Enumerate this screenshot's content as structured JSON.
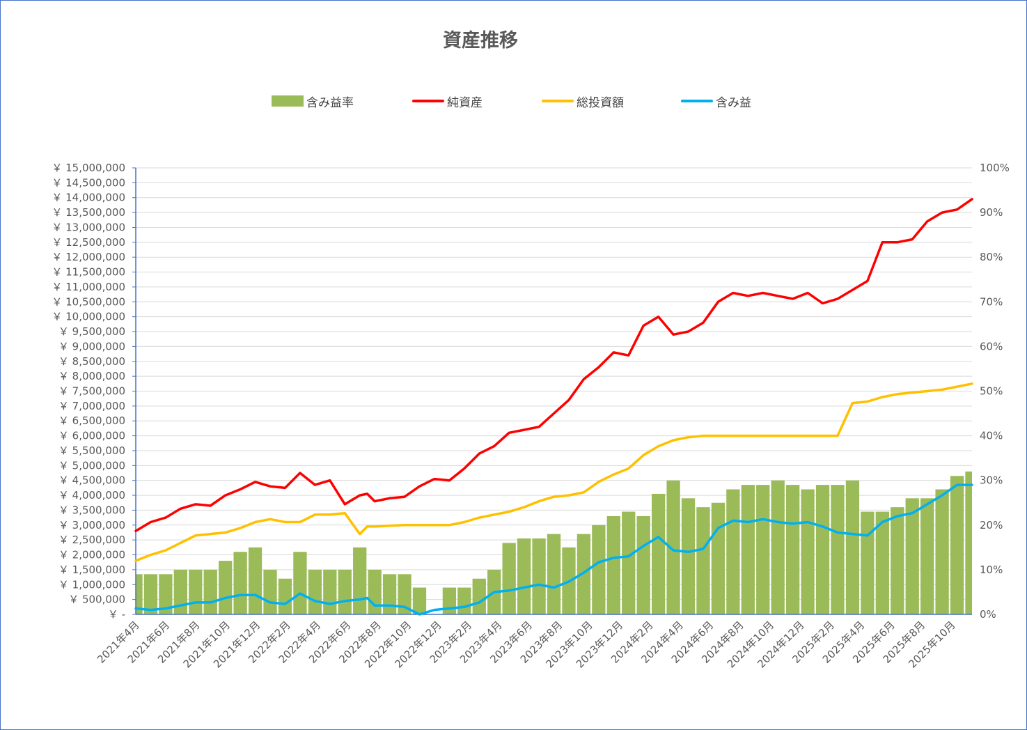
{
  "chart_data": {
    "type": "combo",
    "title": "資産推移",
    "legend": {
      "position": "top"
    },
    "legend_entries": [
      {
        "key": "ratio",
        "label": "含み益率",
        "color": "#9bbb59",
        "kind": "bar"
      },
      {
        "key": "net",
        "label": "純資産",
        "color": "#ff0000",
        "kind": "line"
      },
      {
        "key": "invested",
        "label": "総投資額",
        "color": "#ffc000",
        "kind": "line"
      },
      {
        "key": "gain",
        "label": "含み益",
        "color": "#00b0f0",
        "kind": "line"
      }
    ],
    "y_left": {
      "range": [
        0,
        15000000
      ],
      "tick_labels": [
        "￥ -",
        "￥ 500,000",
        "￥ 1,000,000",
        "￥ 1,500,000",
        "￥ 2,000,000",
        "￥ 2,500,000",
        "￥ 3,000,000",
        "￥ 3,500,000",
        "￥ 4,000,000",
        "￥ 4,500,000",
        "￥ 5,000,000",
        "￥ 5,500,000",
        "￥ 6,000,000",
        "￥ 6,500,000",
        "￥ 7,000,000",
        "￥ 7,500,000",
        "￥ 8,000,000",
        "￥ 8,500,000",
        "￥ 9,000,000",
        "￥ 9,500,000",
        "￥ 10,000,000",
        "￥ 10,500,000",
        "￥ 11,000,000",
        "￥ 11,500,000",
        "￥ 12,000,000",
        "￥ 12,500,000",
        "￥ 13,000,000",
        "￥ 13,500,000",
        "￥ 14,000,000",
        "￥ 14,500,000",
        "￥ 15,000,000"
      ]
    },
    "y_right": {
      "range": [
        0,
        1.0
      ],
      "tick_labels": [
        "0%",
        "10%",
        "20%",
        "30%",
        "40%",
        "50%",
        "60%",
        "70%",
        "80%",
        "90%",
        "100%"
      ]
    },
    "x_labels": [
      "2021年4月",
      "2021年6月",
      "2021年8月",
      "2021年10月",
      "2021年12月",
      "2022年2月",
      "2022年4月",
      "2022年6月",
      "2022年8月",
      "2022年10月",
      "2022年12月",
      "2023年2月",
      "2023年4月",
      "2023年6月",
      "2023年8月",
      "2023年10月",
      "2023年12月",
      "2024年2月",
      "2024年4月",
      "2024年6月",
      "2024年8月",
      "2024年10月",
      "2024年12月",
      "2025年2月",
      "2025年4月",
      "2025年6月",
      "2025年8月",
      "2025年10月"
    ],
    "x_range": [
      0,
      56
    ],
    "grid": true,
    "series": [
      {
        "name": "純資産",
        "axis": "left",
        "x": [
          0,
          1,
          2,
          3,
          4,
          5,
          6,
          7,
          8,
          9,
          10,
          11,
          12,
          13,
          14,
          15,
          15.5,
          16,
          17,
          18,
          19,
          20,
          21,
          22,
          23,
          24,
          25,
          26,
          27,
          28,
          29,
          30,
          31,
          32,
          33,
          34,
          35,
          36,
          37,
          38,
          39,
          40,
          41,
          42,
          43,
          44,
          45,
          46,
          47,
          48,
          49,
          50,
          51,
          52,
          53,
          54,
          55,
          56
        ],
        "values": [
          2800000,
          3100000,
          3250000,
          3550000,
          3700000,
          3650000,
          4000000,
          4200000,
          4450000,
          4300000,
          4250000,
          4750000,
          4350000,
          4500000,
          3700000,
          4000000,
          4050000,
          3800000,
          3900000,
          3950000,
          4300000,
          4550000,
          4500000,
          4900000,
          5400000,
          5650000,
          6100000,
          6200000,
          6300000,
          6750000,
          7200000,
          7900000,
          8300000,
          8800000,
          8700000,
          9700000,
          10000000,
          9400000,
          9500000,
          9800000,
          10500000,
          10800000,
          10700000,
          10800000,
          10700000,
          10600000,
          10800000,
          10450000,
          10600000,
          10900000,
          11200000,
          12500000,
          12500000,
          12600000,
          13200000,
          13500000,
          13600000,
          13950000
        ]
      },
      {
        "name": "総投資額",
        "axis": "left",
        "x": [
          0,
          1,
          2,
          3,
          4,
          5,
          6,
          7,
          8,
          9,
          10,
          11,
          12,
          13,
          14,
          15,
          15.5,
          16,
          17,
          18,
          19,
          20,
          21,
          22,
          23,
          24,
          25,
          26,
          27,
          28,
          29,
          30,
          31,
          32,
          33,
          34,
          35,
          36,
          37,
          38,
          39,
          40,
          41,
          42,
          43,
          44,
          45,
          46,
          47,
          48,
          49,
          50,
          51,
          52,
          53,
          54,
          55,
          56
        ],
        "values": [
          1800000,
          2000000,
          2150000,
          2400000,
          2650000,
          2700000,
          2750000,
          2900000,
          3100000,
          3200000,
          3100000,
          3100000,
          3350000,
          3350000,
          3400000,
          2700000,
          2950000,
          2950000,
          2980000,
          3000000,
          3000000,
          3000000,
          3000000,
          3100000,
          3250000,
          3350000,
          3450000,
          3600000,
          3800000,
          3950000,
          4000000,
          4100000,
          4450000,
          4700000,
          4900000,
          5350000,
          5650000,
          5850000,
          5950000,
          6000000,
          6000000,
          6000000,
          6000000,
          6000000,
          6000000,
          6000000,
          6000000,
          6000000,
          6000000,
          7100000,
          7150000,
          7300000,
          7400000,
          7450000,
          7500000,
          7550000,
          7650000,
          7750000
        ]
      },
      {
        "name": "含み益",
        "axis": "left",
        "x": [
          0,
          1,
          2,
          3,
          4,
          5,
          6,
          7,
          8,
          9,
          10,
          11,
          12,
          13,
          14,
          15,
          15.5,
          16,
          17,
          18,
          19,
          20,
          21,
          22,
          23,
          24,
          25,
          26,
          27,
          28,
          29,
          30,
          31,
          32,
          33,
          34,
          35,
          36,
          37,
          38,
          39,
          40,
          41,
          42,
          43,
          44,
          45,
          46,
          47,
          48,
          49,
          50,
          51,
          52,
          53,
          54,
          55,
          56
        ],
        "values": [
          200000,
          150000,
          200000,
          300000,
          400000,
          400000,
          550000,
          650000,
          650000,
          400000,
          350000,
          700000,
          450000,
          350000,
          450000,
          500000,
          550000,
          300000,
          300000,
          250000,
          0,
          150000,
          200000,
          250000,
          400000,
          750000,
          800000,
          900000,
          1000000,
          900000,
          1100000,
          1400000,
          1750000,
          1900000,
          1950000,
          2300000,
          2600000,
          2150000,
          2100000,
          2200000,
          2900000,
          3150000,
          3100000,
          3200000,
          3100000,
          3050000,
          3100000,
          2950000,
          2750000,
          2700000,
          2650000,
          3100000,
          3300000,
          3400000,
          3700000,
          4000000,
          4350000,
          4350000
        ]
      },
      {
        "name": "含み益率",
        "axis": "right",
        "kind": "bar",
        "x": [
          0,
          1,
          2,
          3,
          4,
          5,
          6,
          7,
          8,
          9,
          10,
          11,
          12,
          13,
          14,
          15,
          16,
          17,
          18,
          19,
          20,
          21,
          22,
          23,
          24,
          25,
          26,
          27,
          28,
          29,
          30,
          31,
          32,
          33,
          34,
          35,
          36,
          37,
          38,
          39,
          40,
          41,
          42,
          43,
          44,
          45,
          46,
          47,
          48,
          49,
          50,
          51,
          52,
          53,
          54,
          55,
          56
        ],
        "values": [
          0.09,
          0.09,
          0.09,
          0.1,
          0.1,
          0.1,
          0.12,
          0.14,
          0.15,
          0.1,
          0.08,
          0.14,
          0.1,
          0.1,
          0.1,
          0.15,
          0.1,
          0.09,
          0.09,
          0.06,
          0.0,
          0.06,
          0.06,
          0.08,
          0.1,
          0.16,
          0.17,
          0.17,
          0.18,
          0.15,
          0.18,
          0.2,
          0.22,
          0.23,
          0.22,
          0.27,
          0.3,
          0.26,
          0.24,
          0.25,
          0.28,
          0.29,
          0.29,
          0.3,
          0.29,
          0.28,
          0.29,
          0.29,
          0.3,
          0.23,
          0.23,
          0.24,
          0.26,
          0.26,
          0.28,
          0.31,
          0.32
        ]
      }
    ]
  }
}
